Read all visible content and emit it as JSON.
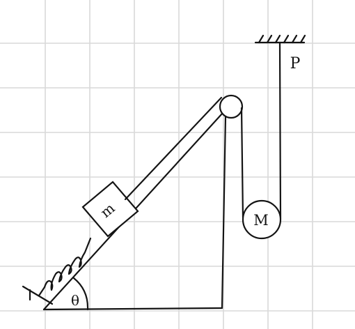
{
  "labels": {
    "block": "m",
    "hanging_mass": "M",
    "ceiling_point": "P",
    "angle": "θ"
  }
}
